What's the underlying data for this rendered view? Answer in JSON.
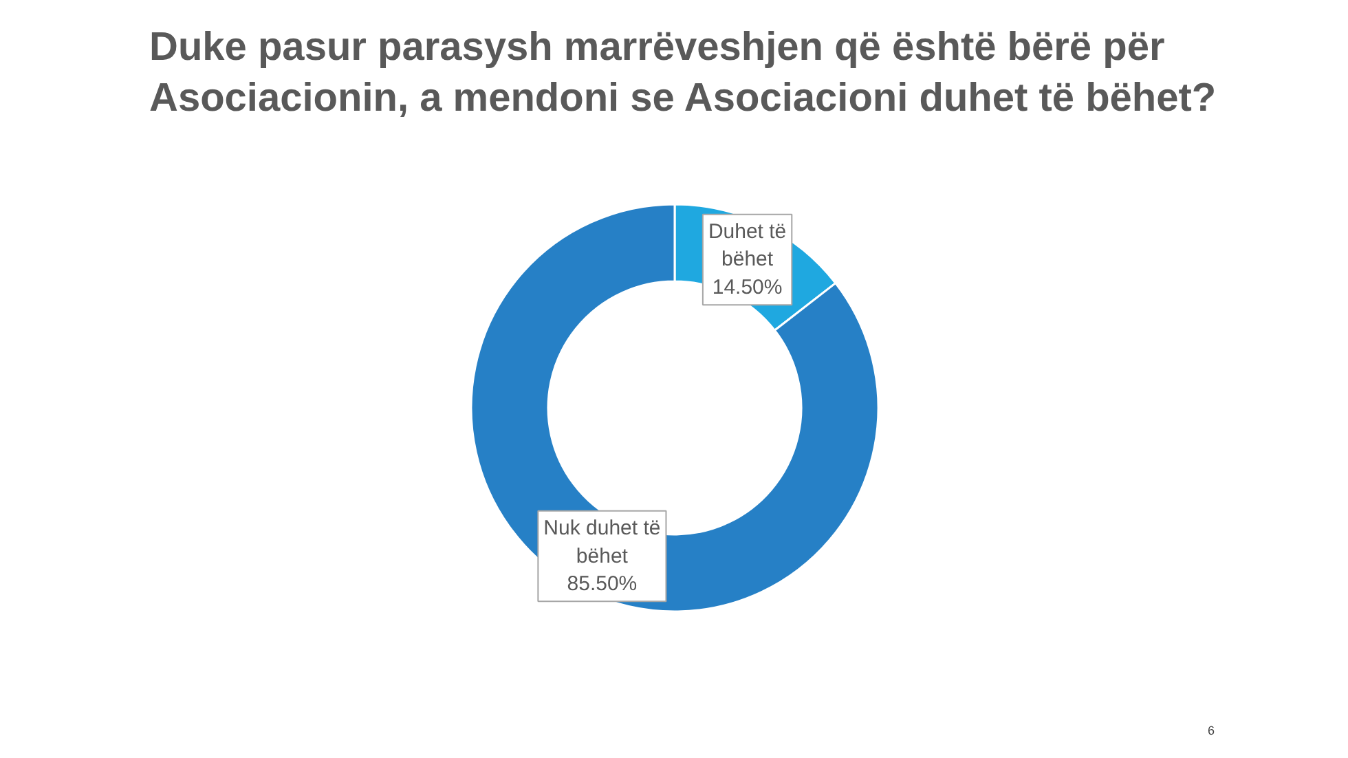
{
  "chart_data": {
    "type": "donut",
    "title": "Duke pasur parasysh marrëveshjen që është bërë për Asociacionin, a mendoni se Asociacioni duhet të bëhet?",
    "categories": [
      "Duhet të bëhet",
      "Nuk duhet të bëhet"
    ],
    "values": [
      14.5,
      85.5
    ],
    "colors": [
      "#1fa8e0",
      "#2680c6"
    ],
    "value_labels": [
      "14.50%",
      "85.50%"
    ],
    "annotations": [
      "6"
    ]
  }
}
